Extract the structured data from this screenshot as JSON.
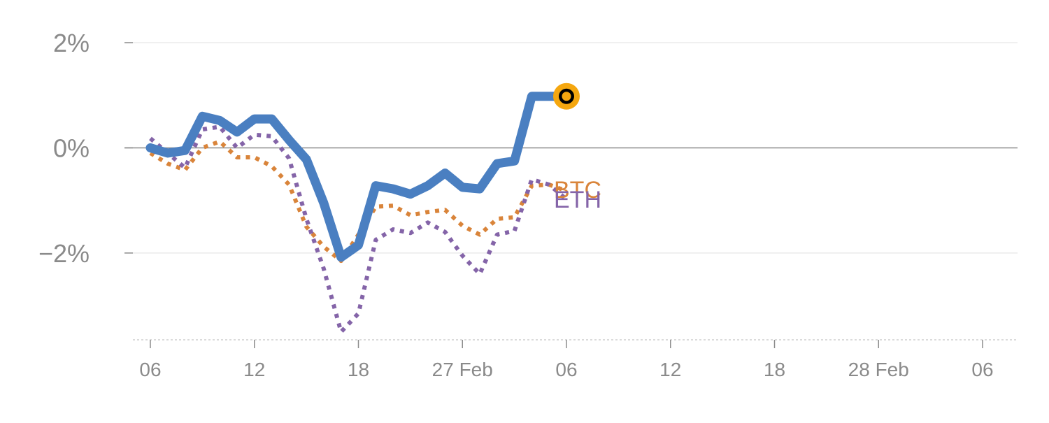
{
  "chart_data": {
    "type": "line",
    "title": "",
    "xlabel": "",
    "ylabel": "",
    "x_tick_labels": [
      "06",
      "12",
      "18",
      "27 Feb",
      "06",
      "12",
      "18",
      "28 Feb",
      "06"
    ],
    "y_ticks": [
      {
        "value": 2,
        "label": "2%"
      },
      {
        "value": 0,
        "label": "0%"
      },
      {
        "value": -2,
        "label": "−2%"
      }
    ],
    "ylim": [
      -3.65,
      2.0
    ],
    "xlim": [
      0,
      48
    ],
    "grid": true,
    "legend": "none",
    "x": [
      0,
      1,
      2,
      3,
      4,
      5,
      6,
      7,
      8,
      9,
      10,
      11,
      12,
      13,
      14,
      15,
      16,
      17,
      18,
      19,
      20,
      21,
      22,
      23,
      24
    ],
    "series": [
      {
        "name": "",
        "color": "#4a7fc1",
        "style": "solid",
        "values": [
          0.0,
          -0.1,
          -0.05,
          0.6,
          0.52,
          0.3,
          0.55,
          0.55,
          0.15,
          -0.22,
          -1.05,
          -2.08,
          -1.85,
          -0.72,
          -0.78,
          -0.88,
          -0.72,
          -0.48,
          -0.75,
          -0.78,
          -0.3,
          -0.25,
          0.98,
          0.98,
          0.98
        ]
      },
      {
        "name": "BTC",
        "color": "#d9843a",
        "style": "dotted",
        "values": [
          -0.1,
          -0.3,
          -0.42,
          0.0,
          0.12,
          -0.18,
          -0.18,
          -0.35,
          -0.7,
          -1.5,
          -1.88,
          -2.15,
          -1.65,
          -1.12,
          -1.1,
          -1.28,
          -1.22,
          -1.18,
          -1.48,
          -1.65,
          -1.35,
          -1.32,
          -0.72,
          -0.7,
          -0.82
        ]
      },
      {
        "name": "ETH",
        "color": "#8464a8",
        "style": "dotted",
        "values": [
          0.18,
          -0.1,
          -0.38,
          0.35,
          0.4,
          0.0,
          0.25,
          0.22,
          -0.2,
          -1.35,
          -2.3,
          -3.5,
          -3.15,
          -1.75,
          -1.55,
          -1.62,
          -1.42,
          -1.6,
          -2.05,
          -2.4,
          -1.65,
          -1.58,
          -0.6,
          -0.7,
          -0.98
        ]
      }
    ],
    "end_marker": {
      "series": 0,
      "fill": "#000000",
      "ring": "#f5a70f"
    }
  }
}
